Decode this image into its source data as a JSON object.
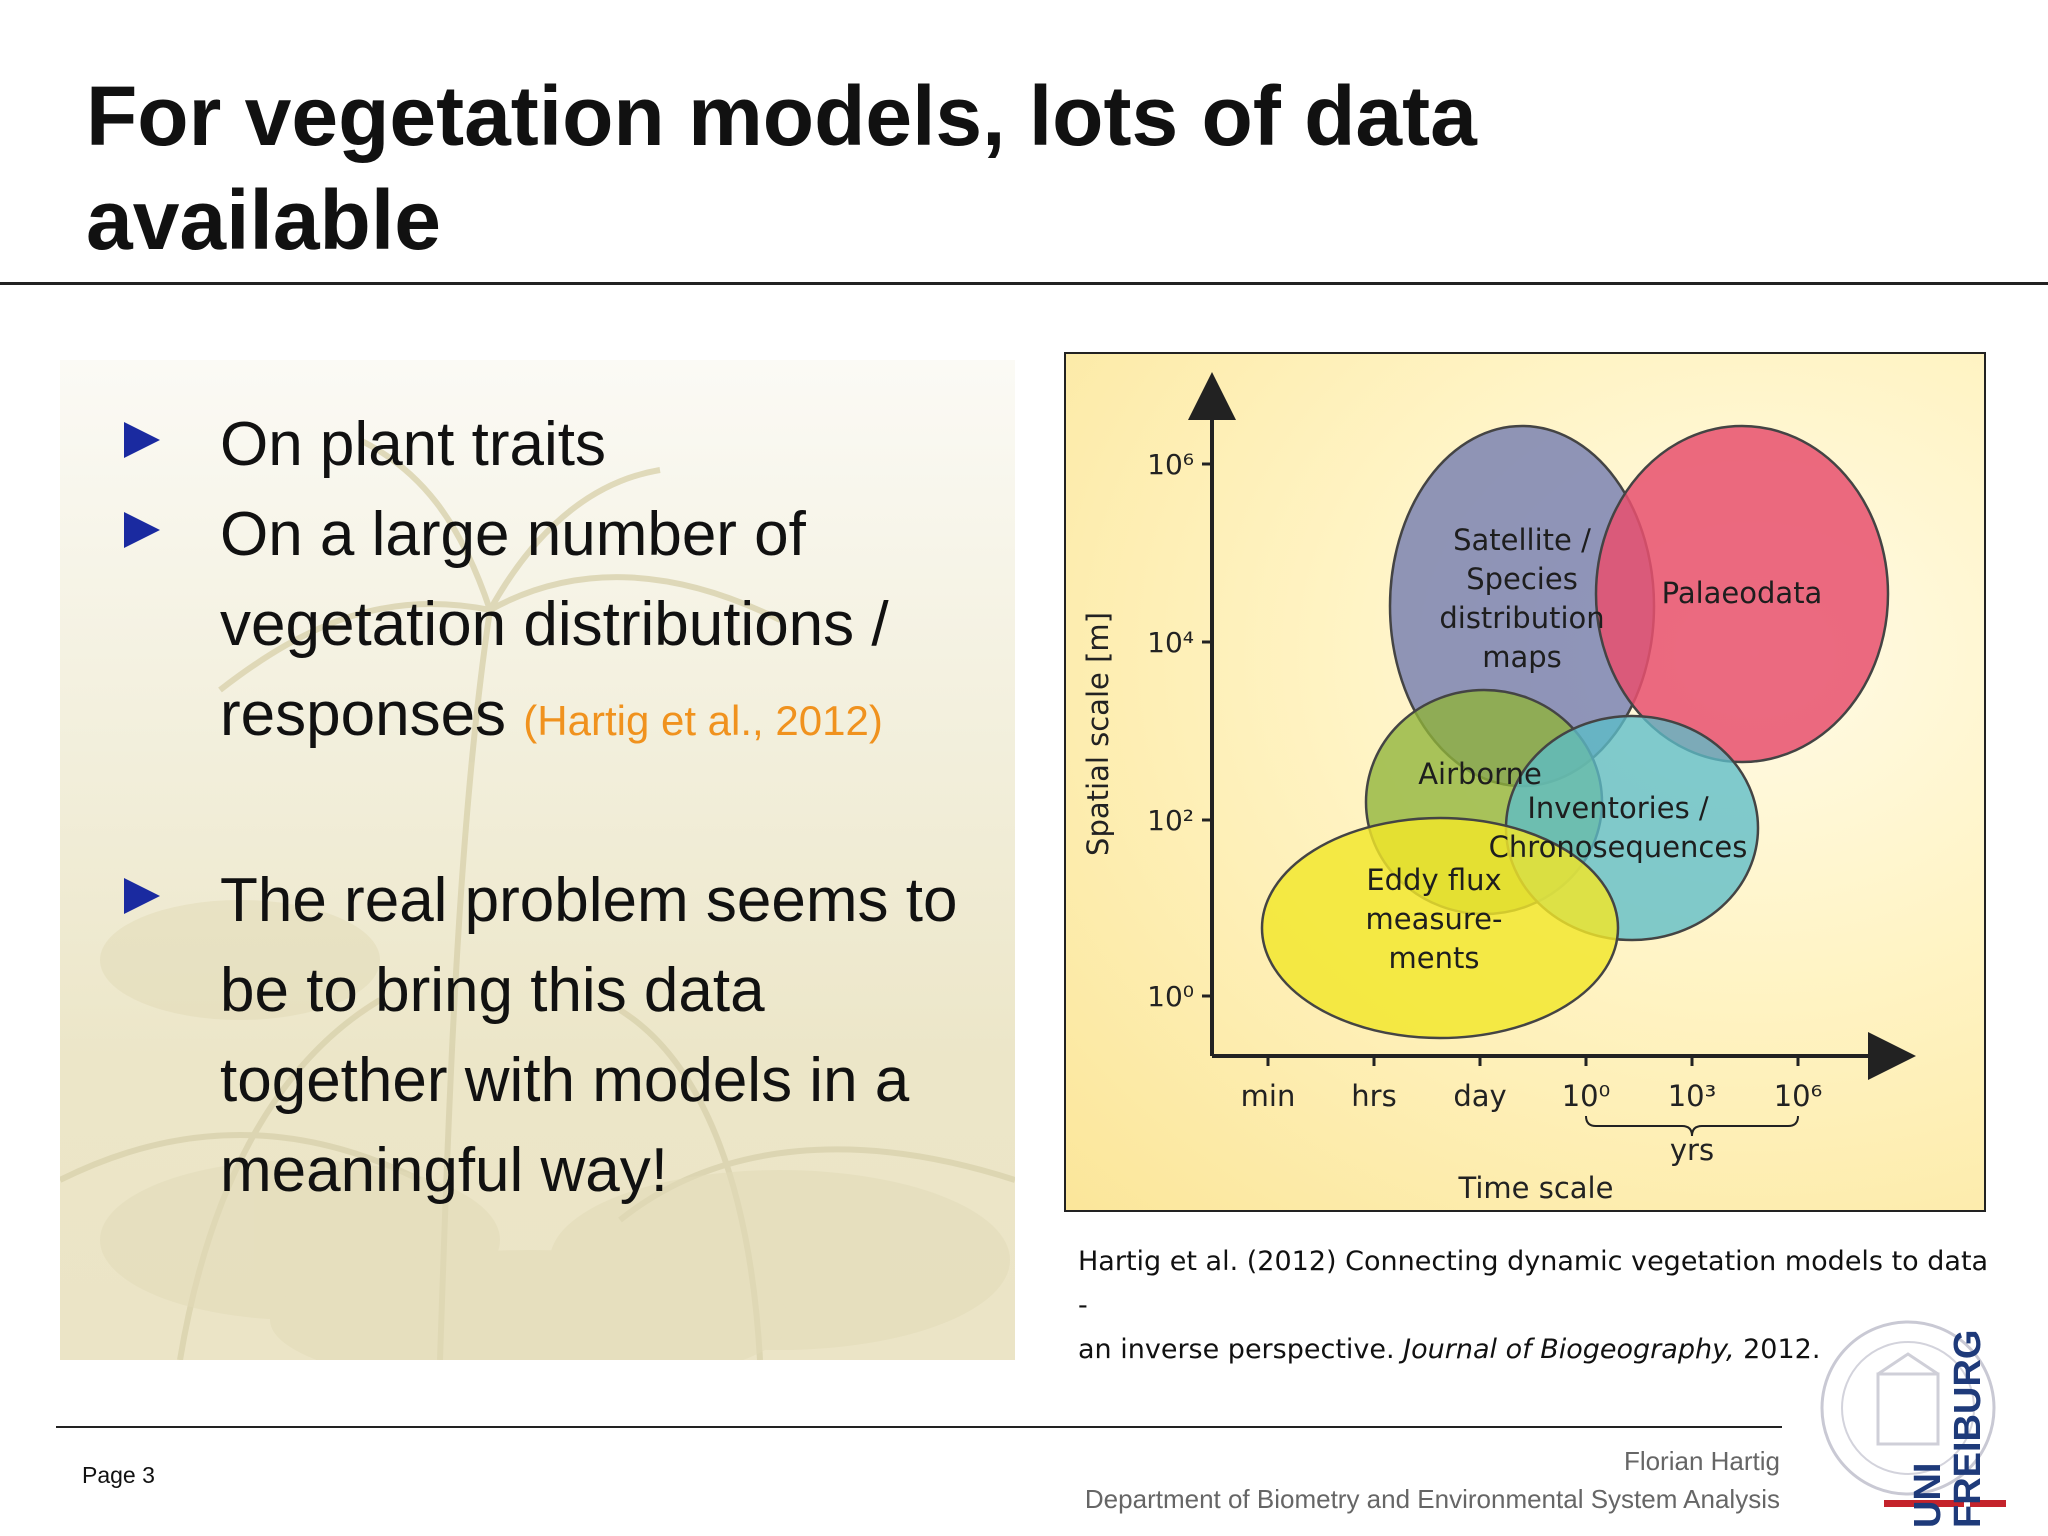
{
  "slide": {
    "title": "For vegetation models, lots of data available"
  },
  "bullets": [
    {
      "text": "On plant traits"
    },
    {
      "text": "On a large number of vegetation distributions / responses",
      "citation": "(Hartig et al., 2012)"
    },
    {
      "text": "The real problem seems to be to bring this data together with models in a meaningful way!"
    }
  ],
  "figure": {
    "y_axis_label": "Spatial scale [m]",
    "y_ticks": [
      "10⁶",
      "10⁴",
      "10²",
      "10⁰"
    ],
    "x_ticks": [
      "min",
      "hrs",
      "day",
      "10⁰",
      "10³",
      "10⁶"
    ],
    "x_brace_label": "yrs",
    "x_axis_label": "Time scale",
    "regions": [
      {
        "label_lines": [
          "Satellite /",
          "Species",
          "distribution",
          "maps"
        ],
        "color": "#6f78b0"
      },
      {
        "label_lines": [
          "Palaeodata"
        ],
        "color": "#e8506e"
      },
      {
        "label_lines": [
          "Airborne"
        ],
        "color": "#8fb43a"
      },
      {
        "label_lines": [
          "Inventories /",
          "Chronosequences"
        ],
        "color": "#5cbcc8"
      },
      {
        "label_lines": [
          "Eddy flux",
          "measure-",
          "ments"
        ],
        "color": "#f2e62a"
      }
    ]
  },
  "caption": {
    "line1": "Hartig et al. (2012) Connecting dynamic vegetation models to data -",
    "line2_prefix": "an inverse perspective. ",
    "journal": "Journal of Biogeography,",
    "line2_suffix": " 2012."
  },
  "footer": {
    "page": "Page 3",
    "author": "Florian Hartig",
    "department": "Department of Biometry and Environmental System Analysis",
    "logo_text": [
      "UNI",
      "FREIBURG"
    ]
  }
}
